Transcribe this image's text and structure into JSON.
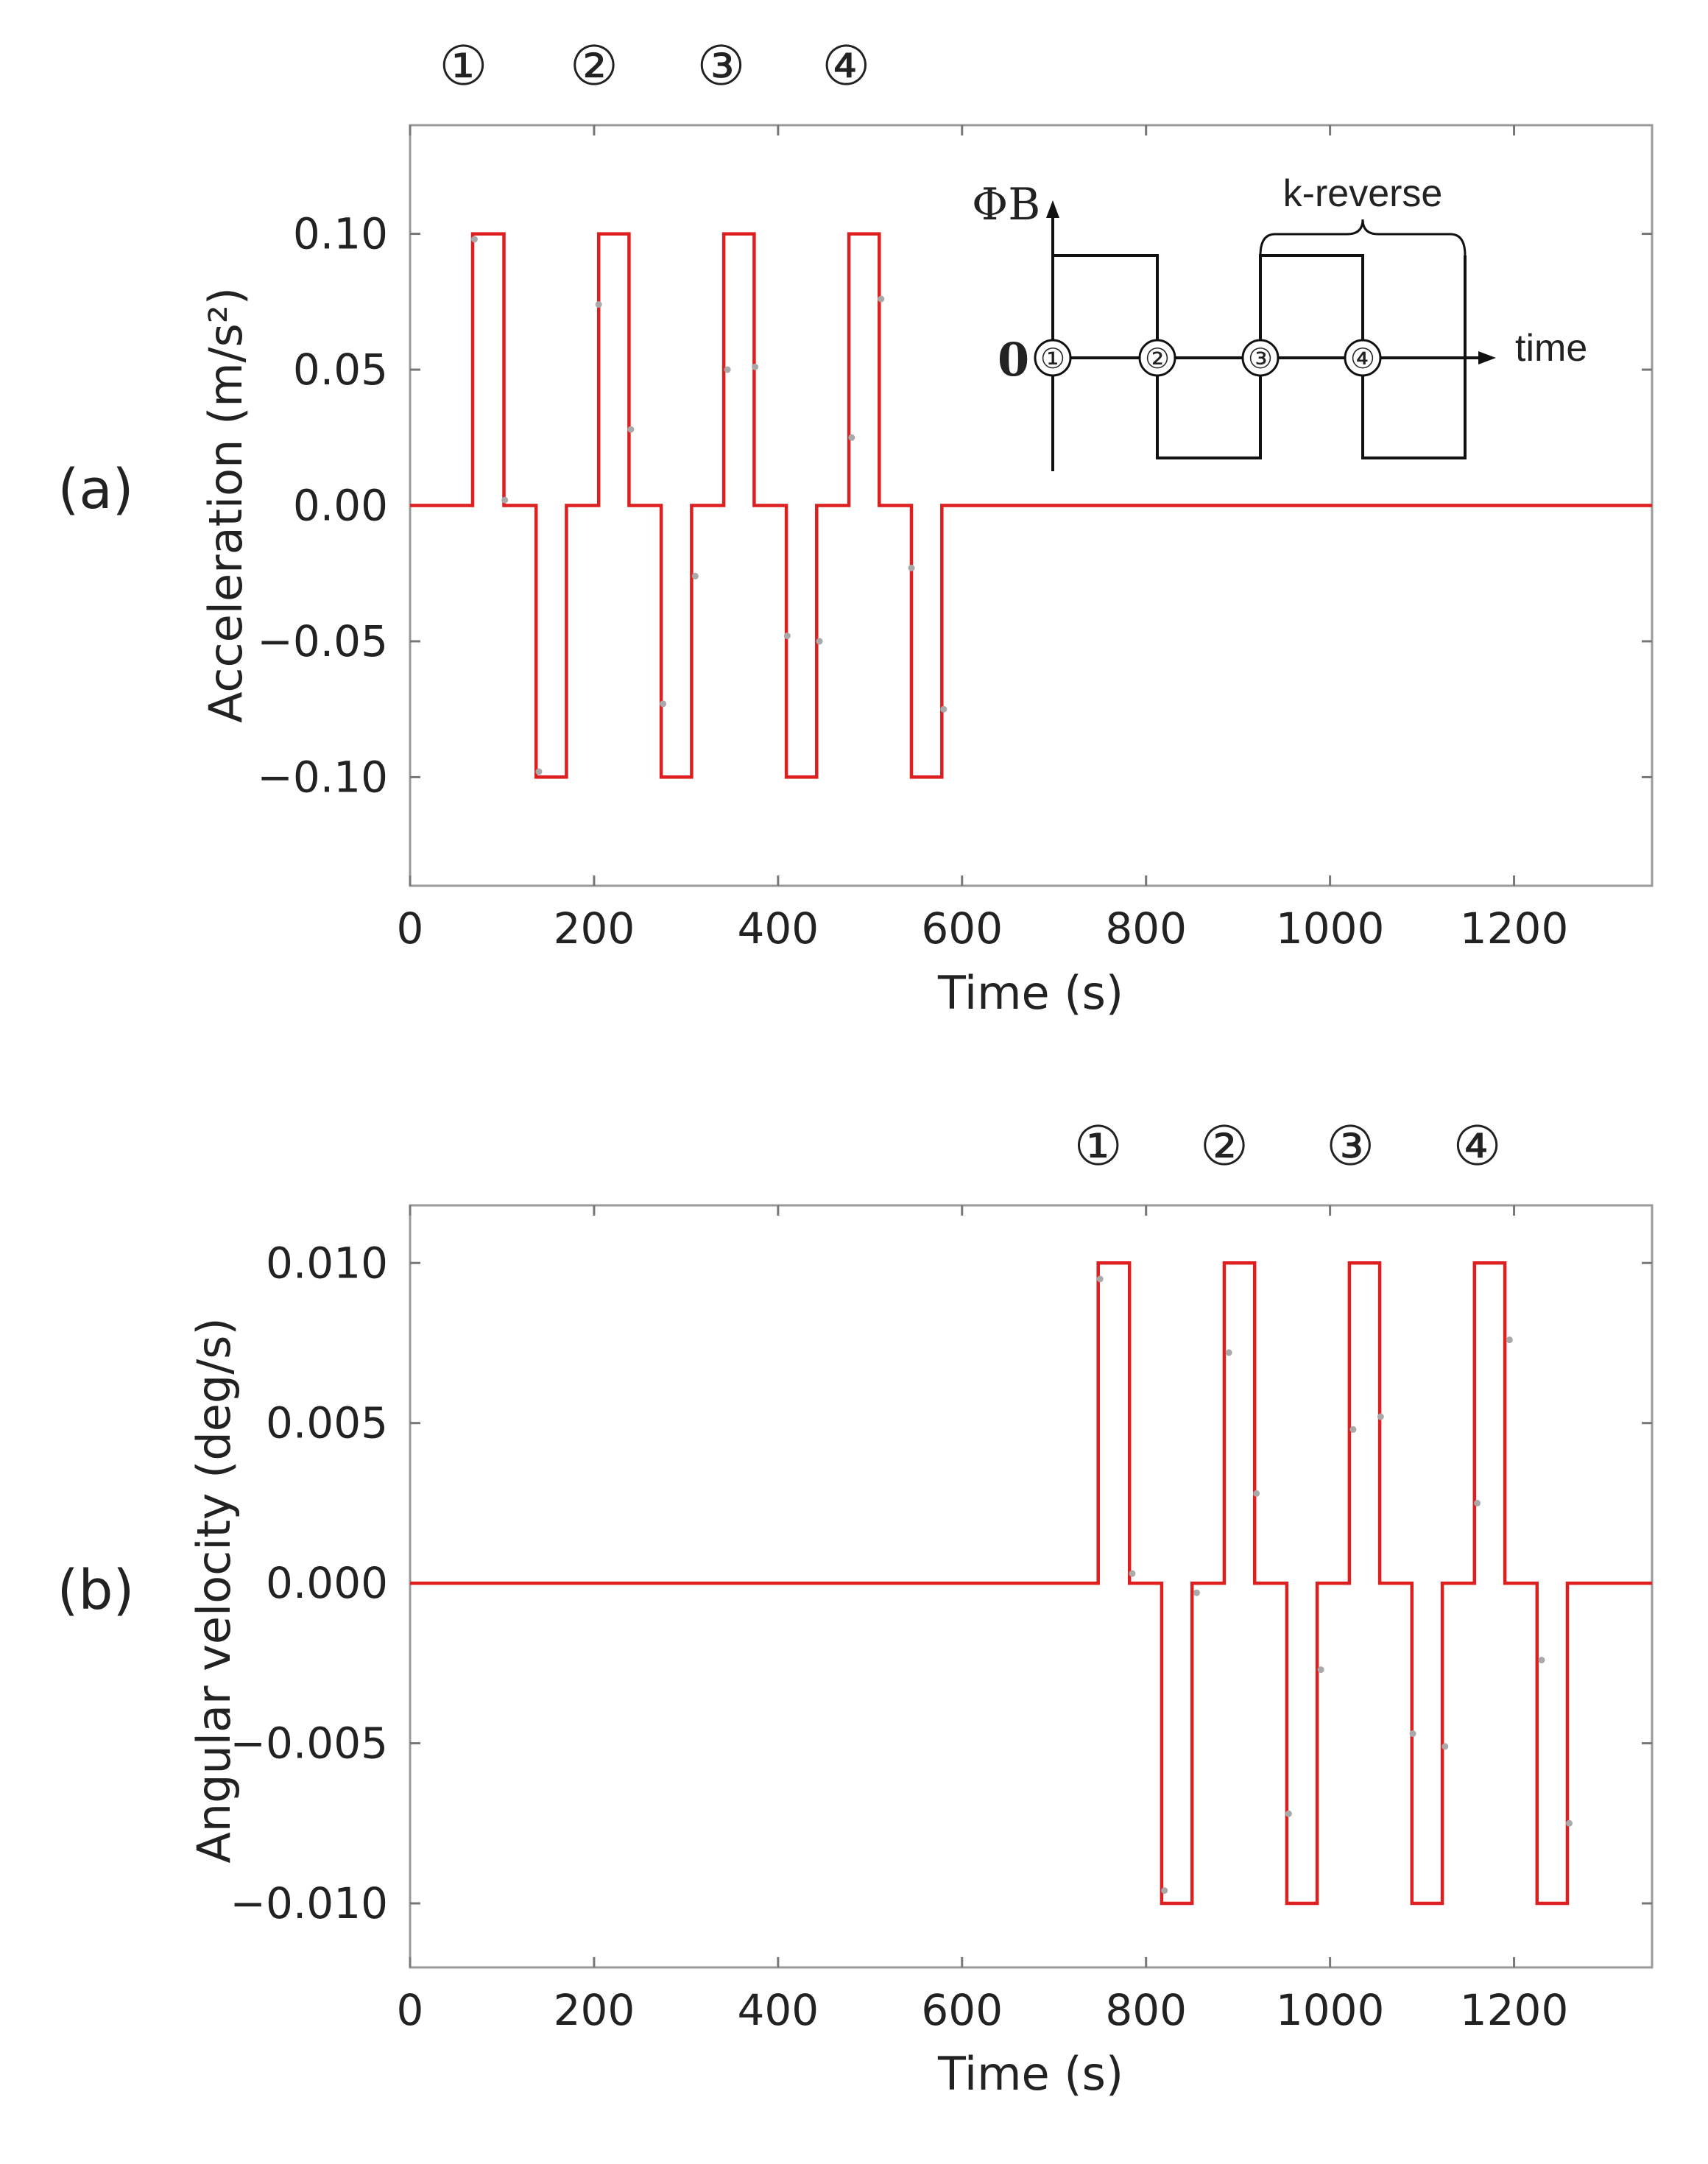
{
  "chart_data": [
    {
      "type": "line",
      "panel": "(a)",
      "xlabel": "Time (s)",
      "ylabel": "Acceleration (m/s²)",
      "xlim": [
        0,
        1350
      ],
      "ylim": [
        -0.14,
        0.14
      ],
      "xticks": [
        0,
        200,
        400,
        600,
        800,
        1000,
        1200
      ],
      "xtick_labels": [
        "0",
        "200",
        "400",
        "600",
        "800",
        "1000",
        "1200"
      ],
      "yticks": [
        -0.1,
        -0.05,
        0.0,
        0.05,
        0.1
      ],
      "ytick_labels": [
        "−0.10",
        "−0.05",
        "0.00",
        "0.05",
        "0.10"
      ],
      "grid": false,
      "markers": [
        {
          "label": "①",
          "x": 58
        },
        {
          "label": "②",
          "x": 200
        },
        {
          "label": "③",
          "x": 338
        },
        {
          "label": "④",
          "x": 474
        }
      ],
      "series": [
        {
          "color": "#dd1f1f",
          "x": [
            0,
            68,
            68,
            102,
            102,
            137,
            137,
            170,
            170,
            205,
            205,
            238,
            238,
            273,
            273,
            306,
            306,
            341,
            341,
            374,
            374,
            409,
            409,
            442,
            442,
            477,
            477,
            510,
            510,
            545,
            545,
            578,
            578,
            1350
          ],
          "y": [
            0,
            0,
            0.1,
            0.1,
            0,
            0,
            -0.1,
            -0.1,
            0,
            0,
            0.1,
            0.1,
            0,
            0,
            -0.1,
            -0.1,
            0,
            0,
            0.1,
            0.1,
            0,
            0,
            -0.1,
            -0.1,
            0,
            0,
            0.1,
            0.1,
            0,
            0,
            -0.1,
            -0.1,
            0,
            0
          ]
        },
        {
          "color": "#a9a9a9",
          "style": "dots",
          "x": [
            70,
            103,
            140,
            205,
            240,
            275,
            310,
            345,
            375,
            410,
            445,
            480,
            512,
            545,
            580
          ],
          "y": [
            0.098,
            0.002,
            -0.098,
            0.074,
            0.028,
            -0.073,
            -0.026,
            0.05,
            0.051,
            -0.048,
            -0.05,
            0.025,
            0.076,
            -0.023,
            -0.075
          ]
        }
      ],
      "inset": {
        "ylabel": "ΦB",
        "origin_label": "0",
        "xlabel": "time",
        "bracket_label": "k-reverse",
        "levels": [
          1,
          -1,
          1,
          -1
        ],
        "markers": [
          "①",
          "②",
          "③",
          "④"
        ]
      }
    },
    {
      "type": "line",
      "panel": "(b)",
      "xlabel": "Time (s)",
      "ylabel": "Angular velocity (deg/s)",
      "xlim": [
        0,
        1350
      ],
      "ylim": [
        -0.012,
        0.0118
      ],
      "xticks": [
        0,
        200,
        400,
        600,
        800,
        1000,
        1200
      ],
      "xtick_labels": [
        "0",
        "200",
        "400",
        "600",
        "800",
        "1000",
        "1200"
      ],
      "yticks": [
        -0.01,
        -0.005,
        0.0,
        0.005,
        0.01
      ],
      "ytick_labels": [
        "−0.010",
        "−0.005",
        "0.000",
        "0.005",
        "0.010"
      ],
      "grid": false,
      "markers": [
        {
          "label": "①",
          "x": 748
        },
        {
          "label": "②",
          "x": 885
        },
        {
          "label": "③",
          "x": 1022
        },
        {
          "label": "④",
          "x": 1160
        }
      ],
      "series": [
        {
          "color": "#dd1f1f",
          "x": [
            0,
            748,
            748,
            782,
            782,
            817,
            817,
            850,
            850,
            885,
            885,
            918,
            918,
            953,
            953,
            986,
            986,
            1021,
            1021,
            1054,
            1054,
            1089,
            1089,
            1122,
            1122,
            1157,
            1157,
            1190,
            1190,
            1225,
            1225,
            1258,
            1258,
            1350
          ],
          "y": [
            0,
            0,
            0.01,
            0.01,
            0,
            0,
            -0.01,
            -0.01,
            0,
            0,
            0.01,
            0.01,
            0,
            0,
            -0.01,
            -0.01,
            0,
            0,
            0.01,
            0.01,
            0,
            0,
            -0.01,
            -0.01,
            0,
            0,
            0.01,
            0.01,
            0,
            0,
            -0.01,
            -0.01,
            0,
            0
          ]
        },
        {
          "color": "#a9a9a9",
          "style": "dots",
          "x": [
            750,
            785,
            820,
            855,
            890,
            920,
            955,
            990,
            1025,
            1055,
            1090,
            1125,
            1160,
            1195,
            1230,
            1260
          ],
          "y": [
            0.0095,
            0.0003,
            -0.0096,
            -0.0003,
            0.0072,
            0.0028,
            -0.0072,
            -0.0027,
            0.0048,
            0.0052,
            -0.0047,
            -0.0051,
            0.0025,
            0.0076,
            -0.0024,
            -0.0075
          ]
        }
      ]
    }
  ]
}
